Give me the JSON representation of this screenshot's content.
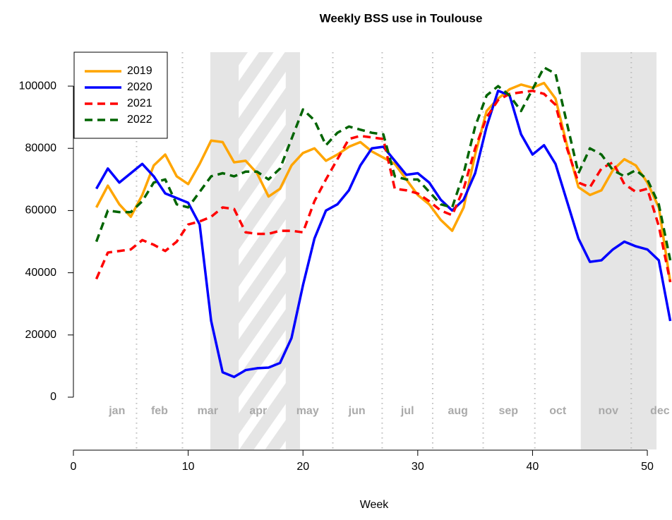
{
  "chart_data": {
    "type": "line",
    "title": "Weekly BSS use in Toulouse",
    "x_label": "Week",
    "x": [
      2,
      3,
      4,
      5,
      6,
      7,
      8,
      9,
      10,
      11,
      12,
      13,
      14,
      15,
      16,
      17,
      18,
      19,
      20,
      21,
      22,
      23,
      24,
      25,
      26,
      27,
      28,
      29,
      30,
      31,
      32,
      33,
      34,
      35,
      36,
      37,
      38,
      39,
      40,
      41,
      42,
      43,
      44,
      45,
      46,
      47,
      48,
      49,
      50,
      51,
      52
    ],
    "series": [
      {
        "name": "2019",
        "color": "#FFA500",
        "dashed": false,
        "values": [
          61000,
          68000,
          62000,
          58000,
          65000,
          74500,
          78000,
          71000,
          68500,
          75000,
          82500,
          82000,
          75500,
          76000,
          72000,
          64500,
          67000,
          74500,
          78500,
          80000,
          76000,
          78000,
          80500,
          82000,
          79000,
          77000,
          75000,
          70000,
          65000,
          62000,
          57000,
          53500,
          61000,
          78000,
          92000,
          96000,
          99000,
          100500,
          99500,
          101000,
          96000,
          81000,
          67500,
          65000,
          66500,
          73000,
          76500,
          74500,
          69000,
          61000,
          37000
        ]
      },
      {
        "name": "2020",
        "color": "#0000FF",
        "dashed": false,
        "values": [
          67000,
          73500,
          69000,
          72000,
          75000,
          71000,
          65500,
          64000,
          62500,
          55500,
          24500,
          8000,
          6500,
          8700,
          9300,
          9500,
          11000,
          19000,
          36000,
          51000,
          60000,
          62000,
          66500,
          74500,
          80000,
          80500,
          76000,
          71500,
          72000,
          69000,
          63500,
          60000,
          63500,
          72000,
          87000,
          98500,
          97000,
          84500,
          78000,
          81000,
          75000,
          63000,
          51000,
          43500,
          44000,
          47500,
          50000,
          48500,
          47500,
          44000,
          24500
        ]
      },
      {
        "name": "2021",
        "color": "#FF0000",
        "dashed": true,
        "values": [
          38000,
          46500,
          47000,
          47500,
          50500,
          49000,
          47000,
          50000,
          55500,
          56500,
          58000,
          61000,
          60500,
          53000,
          52500,
          52500,
          53500,
          53500,
          53000,
          63000,
          70000,
          76500,
          83000,
          84000,
          83500,
          83000,
          67000,
          66500,
          65500,
          63000,
          60000,
          58500,
          67000,
          80000,
          90000,
          95500,
          97500,
          98000,
          98500,
          97500,
          94000,
          80000,
          69000,
          67500,
          73500,
          75500,
          68500,
          66000,
          67000,
          55000,
          37000
        ]
      },
      {
        "name": "2022",
        "color": "#006400",
        "dashed": true,
        "values": [
          50000,
          60000,
          59500,
          59500,
          63000,
          69000,
          70000,
          62000,
          61000,
          66000,
          71000,
          72000,
          71000,
          72500,
          72500,
          70000,
          73500,
          83000,
          92500,
          89000,
          81000,
          85000,
          87000,
          86000,
          85000,
          84500,
          71000,
          70000,
          70000,
          66000,
          62000,
          61000,
          72000,
          87000,
          97000,
          100000,
          97000,
          92000,
          99000,
          106000,
          104000,
          88000,
          72000,
          80000,
          78000,
          73000,
          71000,
          73000,
          70000,
          62000,
          44000
        ]
      }
    ],
    "xlim": [
      0,
      52.15
    ],
    "ylim": [
      -16800,
      110900
    ],
    "xticks": [
      0,
      10,
      20,
      30,
      40,
      50
    ],
    "yticks": [
      0,
      20000,
      40000,
      60000,
      80000,
      100000
    ],
    "shaded": [
      [
        11.93,
        19.74
      ],
      [
        44.2,
        50.8
      ]
    ],
    "hatched": [
      [
        14.4,
        18.5
      ]
    ],
    "dotted": [
      5.5,
      9.5,
      22.6,
      26.9,
      31.3,
      35.7,
      40.2,
      48.6
    ],
    "months": [
      {
        "label": "jan",
        "x": 3.8
      },
      {
        "label": "feb",
        "x": 7.5
      },
      {
        "label": "mar",
        "x": 11.7
      },
      {
        "label": "apr",
        "x": 16.1
      },
      {
        "label": "may",
        "x": 20.4
      },
      {
        "label": "jun",
        "x": 24.7
      },
      {
        "label": "jul",
        "x": 29.1
      },
      {
        "label": "aug",
        "x": 33.5
      },
      {
        "label": "sep",
        "x": 37.9
      },
      {
        "label": "oct",
        "x": 42.2
      },
      {
        "label": "nov",
        "x": 46.6
      },
      {
        "label": "dec",
        "x": 51.1
      }
    ],
    "legend": "top-left"
  }
}
